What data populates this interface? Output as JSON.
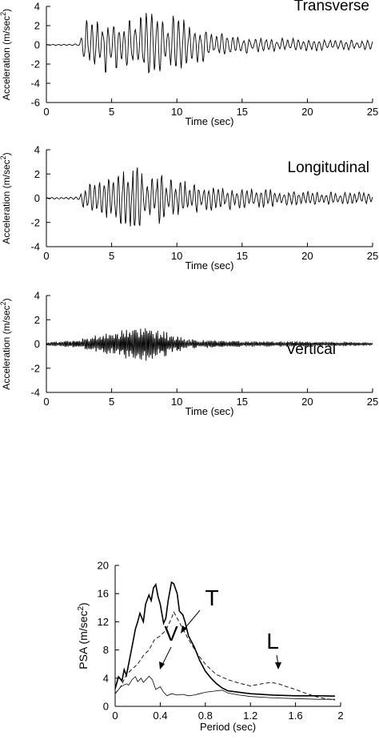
{
  "chart_data": [
    {
      "type": "line",
      "annotation": "Transverse",
      "xlabel": "Time (sec)",
      "ylabel": "Acceleration (m/sec",
      "ylabel_sup": "2",
      "ylabel_close": ")",
      "xlim": [
        0,
        25
      ],
      "ylim": [
        -6,
        4
      ],
      "xticks": [
        0,
        5,
        10,
        15,
        20,
        25
      ],
      "yticks": [
        4,
        2,
        0,
        -2,
        -4,
        -6
      ],
      "series": [
        {
          "envelope": [
            [
              0,
              0.05
            ],
            [
              2.5,
              0.1
            ],
            [
              3,
              2.6
            ],
            [
              4,
              3.4
            ],
            [
              5,
              3.0
            ],
            [
              6,
              3.5
            ],
            [
              7,
              3.6
            ],
            [
              8,
              3.5
            ],
            [
              9,
              3.2
            ],
            [
              10,
              3.0
            ],
            [
              11,
              2.4
            ],
            [
              12,
              1.8
            ],
            [
              13,
              1.3
            ],
            [
              14,
              1.1
            ],
            [
              15,
              0.9
            ],
            [
              17,
              0.75
            ],
            [
              20,
              0.65
            ],
            [
              25,
              0.5
            ]
          ],
          "samples": 520,
          "period": 0.42,
          "seed": 11
        }
      ]
    },
    {
      "type": "line",
      "annotation": "Longitudinal",
      "xlabel": "Time (sec)",
      "ylabel": "Acceleration (m/sec",
      "ylabel_sup": "2",
      "ylabel_close": ")",
      "xlim": [
        0,
        25
      ],
      "ylim": [
        -4,
        4
      ],
      "xticks": [
        0,
        5,
        10,
        15,
        20,
        25
      ],
      "yticks": [
        4,
        2,
        0,
        -2,
        -4
      ],
      "series": [
        {
          "envelope": [
            [
              0,
              0.05
            ],
            [
              2.5,
              0.15
            ],
            [
              3,
              1.2
            ],
            [
              4,
              1.5
            ],
            [
              5,
              1.8
            ],
            [
              6,
              2.6
            ],
            [
              7,
              3.0
            ],
            [
              8,
              2.4
            ],
            [
              9,
              2.0
            ],
            [
              10,
              1.6
            ],
            [
              12,
              1.2
            ],
            [
              14,
              1.0
            ],
            [
              16,
              0.85
            ],
            [
              20,
              0.6
            ],
            [
              25,
              0.5
            ]
          ],
          "samples": 520,
          "period": 0.36,
          "seed": 23
        }
      ]
    },
    {
      "type": "line",
      "annotation": "Vertical",
      "xlabel": "Time (sec)",
      "ylabel": "Acceleration (m/sec",
      "ylabel_sup": "2",
      "ylabel_close": ")",
      "xlim": [
        0,
        25
      ],
      "ylim": [
        -4,
        4
      ],
      "xticks": [
        0,
        5,
        10,
        15,
        20,
        25
      ],
      "yticks": [
        4,
        2,
        0,
        -2,
        -4
      ],
      "series": [
        {
          "envelope": [
            [
              0,
              0.15
            ],
            [
              2,
              0.3
            ],
            [
              4,
              0.8
            ],
            [
              6,
              1.3
            ],
            [
              7,
              1.6
            ],
            [
              8,
              1.3
            ],
            [
              9,
              1.1
            ],
            [
              10,
              0.8
            ],
            [
              11,
              0.4
            ],
            [
              13,
              0.3
            ],
            [
              15,
              0.25
            ],
            [
              20,
              0.2
            ],
            [
              25,
              0.15
            ]
          ],
          "samples": 900,
          "period": 0.12,
          "seed": 37
        }
      ]
    },
    {
      "type": "line",
      "xlabel": "Period (sec)",
      "ylabel": "PSA (m/sec",
      "ylabel_sup": "2",
      "ylabel_close": ")",
      "xlim": [
        0,
        2
      ],
      "ylim": [
        0,
        20
      ],
      "xticks": [
        0,
        0.4,
        0.8,
        1.2,
        1.6,
        2
      ],
      "xticklabels": [
        "0",
        "0.4",
        "0.8",
        "1.2",
        "1.6",
        "2"
      ],
      "yticks": [
        0,
        4,
        8,
        12,
        16,
        20
      ],
      "series": [
        {
          "id": "T",
          "label": "T",
          "style": "solid-thick",
          "points": [
            [
              0,
              2.5
            ],
            [
              0.03,
              4.2
            ],
            [
              0.06,
              3.6
            ],
            [
              0.08,
              5.2
            ],
            [
              0.1,
              4.4
            ],
            [
              0.12,
              6.0
            ],
            [
              0.15,
              8.5
            ],
            [
              0.18,
              11.0
            ],
            [
              0.2,
              12.0
            ],
            [
              0.22,
              13.2
            ],
            [
              0.25,
              12.0
            ],
            [
              0.27,
              14.5
            ],
            [
              0.3,
              15.8
            ],
            [
              0.32,
              15.0
            ],
            [
              0.34,
              16.8
            ],
            [
              0.36,
              17.3
            ],
            [
              0.38,
              15.6
            ],
            [
              0.4,
              14.5
            ],
            [
              0.43,
              11.8
            ],
            [
              0.45,
              12.5
            ],
            [
              0.47,
              15.0
            ],
            [
              0.5,
              17.6
            ],
            [
              0.52,
              17.4
            ],
            [
              0.55,
              16.0
            ],
            [
              0.57,
              13.5
            ],
            [
              0.6,
              13.0
            ],
            [
              0.62,
              12.0
            ],
            [
              0.65,
              10.0
            ],
            [
              0.7,
              8.5
            ],
            [
              0.75,
              6.5
            ],
            [
              0.8,
              5.0
            ],
            [
              0.85,
              4.0
            ],
            [
              0.9,
              3.2
            ],
            [
              0.95,
              2.6
            ],
            [
              1.0,
              2.2
            ],
            [
              1.1,
              2.0
            ],
            [
              1.2,
              1.8
            ],
            [
              1.4,
              1.6
            ],
            [
              1.6,
              1.5
            ],
            [
              1.8,
              1.5
            ],
            [
              1.95,
              1.45
            ]
          ]
        },
        {
          "id": "L",
          "label": "L",
          "style": "dashed",
          "points": [
            [
              0,
              1.8
            ],
            [
              0.05,
              2.8
            ],
            [
              0.1,
              4.5
            ],
            [
              0.15,
              5.3
            ],
            [
              0.2,
              6.0
            ],
            [
              0.25,
              7.2
            ],
            [
              0.3,
              8.0
            ],
            [
              0.35,
              9.5
            ],
            [
              0.4,
              10.0
            ],
            [
              0.45,
              10.8
            ],
            [
              0.5,
              12.5
            ],
            [
              0.52,
              13.4
            ],
            [
              0.55,
              12.5
            ],
            [
              0.6,
              11.0
            ],
            [
              0.65,
              9.5
            ],
            [
              0.7,
              8.2
            ],
            [
              0.75,
              7.0
            ],
            [
              0.8,
              6.0
            ],
            [
              0.85,
              5.2
            ],
            [
              0.9,
              4.5
            ],
            [
              1.0,
              3.8
            ],
            [
              1.1,
              3.3
            ],
            [
              1.2,
              2.9
            ],
            [
              1.3,
              3.2
            ],
            [
              1.38,
              3.4
            ],
            [
              1.45,
              3.2
            ],
            [
              1.5,
              2.9
            ],
            [
              1.6,
              2.4
            ],
            [
              1.7,
              1.8
            ],
            [
              1.8,
              1.3
            ],
            [
              1.9,
              1.0
            ],
            [
              1.95,
              0.9
            ]
          ]
        },
        {
          "id": "V",
          "label": "V",
          "style": "solid-thin",
          "points": [
            [
              0,
              1.8
            ],
            [
              0.05,
              2.8
            ],
            [
              0.1,
              3.2
            ],
            [
              0.12,
              3.0
            ],
            [
              0.15,
              3.8
            ],
            [
              0.18,
              4.2
            ],
            [
              0.2,
              3.5
            ],
            [
              0.23,
              4.0
            ],
            [
              0.25,
              3.4
            ],
            [
              0.28,
              3.9
            ],
            [
              0.3,
              4.3
            ],
            [
              0.33,
              3.8
            ],
            [
              0.36,
              2.4
            ],
            [
              0.4,
              2.8
            ],
            [
              0.43,
              2.0
            ],
            [
              0.46,
              1.5
            ],
            [
              0.5,
              1.8
            ],
            [
              0.55,
              1.6
            ],
            [
              0.6,
              1.7
            ],
            [
              0.65,
              1.5
            ],
            [
              0.7,
              1.6
            ],
            [
              0.75,
              1.8
            ],
            [
              0.8,
              2.0
            ],
            [
              0.85,
              2.1
            ],
            [
              0.9,
              2.2
            ],
            [
              0.95,
              2.3
            ],
            [
              1.0,
              1.9
            ],
            [
              1.1,
              1.6
            ],
            [
              1.2,
              1.4
            ],
            [
              1.4,
              1.2
            ],
            [
              1.6,
              1.1
            ],
            [
              1.8,
              1.0
            ],
            [
              1.95,
              1.0
            ]
          ]
        }
      ],
      "labels": [
        "T",
        "L",
        "V"
      ]
    }
  ]
}
